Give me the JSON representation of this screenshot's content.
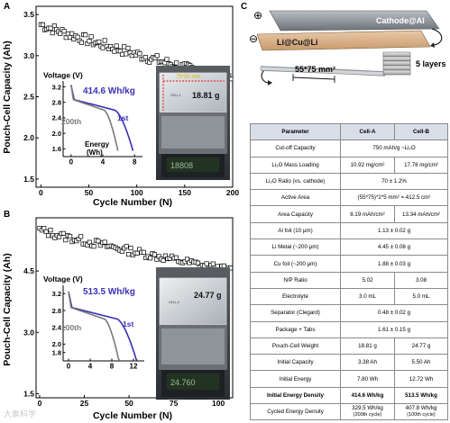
{
  "panels": {
    "a": "A",
    "b": "B",
    "c": "C"
  },
  "chart_data": [
    {
      "type": "scatter",
      "panel": "A",
      "ylabel": "Pouch-Cell Capacity (Ah)",
      "xlabel": "Cycle Number (N)",
      "xlim": [
        -5,
        200
      ],
      "ylim": [
        1.4,
        3.6
      ],
      "xticks": [
        "0",
        "50",
        "100",
        "150",
        "200"
      ],
      "yticks": [
        "1.5",
        "2.0",
        "2.5",
        "3.0",
        "3.5"
      ],
      "series": [
        {
          "start_capacity": 3.38,
          "end_capacity": 2.7,
          "cycles": 200
        }
      ],
      "inset": {
        "ylabel": "Voltage (V)",
        "xlabel": "Energy\n(Wh)",
        "xlim": [
          -1,
          9
        ],
        "ylim": [
          1.4,
          3.35
        ],
        "xticks": [
          "0",
          "4",
          "8"
        ],
        "yticks": [
          "1.6",
          "2.0",
          "2.4",
          "2.8",
          "3.2"
        ],
        "curves": [
          {
            "name": "1st",
            "color": "#3a2fb5",
            "energy_end": 7.8
          },
          {
            "name": "200th",
            "color": "#7a7a7a",
            "energy_end": 5.9
          }
        ],
        "energy_density": "414.6 Wh/kg"
      },
      "photo": {
        "dim_label": "75*55 mm",
        "weight": "18.81 g",
        "cell_tag": "CELL-1",
        "scale_readout": "18808"
      }
    },
    {
      "type": "scatter",
      "panel": "B",
      "ylabel": "Pouch-Cell Capacity (Ah)",
      "xlabel": "Cycle Number (N)",
      "xlim": [
        -2,
        108
      ],
      "ylim": [
        1.4,
        5.8
      ],
      "xticks": [
        "0",
        "25",
        "50",
        "75",
        "100"
      ],
      "yticks": [
        "1.5",
        "3.0",
        "4.5"
      ],
      "series": [
        {
          "start_capacity": 5.5,
          "end_capacity": 4.5,
          "cycles": 108
        }
      ],
      "inset": {
        "ylabel": "Voltage (V)",
        "xlabel": "",
        "xlim": [
          -1,
          14
        ],
        "ylim": [
          1.6,
          3.4
        ],
        "xticks": [
          "0",
          "4",
          "8",
          "12"
        ],
        "yticks": [
          "1.8",
          "2.0",
          "2.4",
          "2.8",
          "3.2",
          "3.6"
        ],
        "curves": [
          {
            "name": "1st",
            "color": "#3a2fb5",
            "energy_end": 12.7
          },
          {
            "name": "100th",
            "color": "#7a7a7a",
            "energy_end": 9.4
          }
        ],
        "energy_density": "513.5 Wh/kg"
      },
      "photo": {
        "weight": "24.77 g",
        "cell_tag": "CELL-2",
        "scale_readout": "24.760"
      }
    }
  ],
  "schematic": {
    "cathode": "Cathode@Al",
    "anode": "Li@Cu@Li",
    "plus": "⊕",
    "minus": "⊖",
    "area": "55*75 mm²",
    "layers": "5 layers"
  },
  "table": {
    "headers": [
      "Parameter",
      "Cell-A",
      "Cell-B"
    ],
    "rows": [
      {
        "p": "Cut-off Capacity",
        "span": "750 mAh/g ~Li₂O"
      },
      {
        "p": "Li₂O Mass Loading",
        "a": "10.92 mg/cm²",
        "b": "17.78 mg/cm²"
      },
      {
        "p": "Li₂O Ratio (vs. cathode)",
        "span": "70 ± 1.2%"
      },
      {
        "p": "Active Area",
        "span": "(55*75)*2*5 mm² = 412.5 cm²"
      },
      {
        "p": "Area Capacity",
        "a": "8.19 mAh/cm²",
        "b": "13.34 mAh/cm²"
      },
      {
        "p": "Al foil (10 μm)",
        "span": "1.13 ± 0.02 g"
      },
      {
        "p": "Li Metal (~200 μm)",
        "span": "4.45 ± 0.08 g"
      },
      {
        "p": "Cu foil (~200 μm)",
        "span": "1.88 ± 0.03 g"
      },
      {
        "p": "N/P Ratio",
        "a": "5.02",
        "b": "3.08"
      },
      {
        "p": "Electrolyte",
        "a": "3.0 mL",
        "b": "5.0 mL"
      },
      {
        "p": "Separator (Clegard)",
        "span": "0.48 ± 0.02 g"
      },
      {
        "p": "Package + Tabs",
        "span": "1.61 ± 0.15 g"
      },
      {
        "p": "Pouch-Cell Weight",
        "a": "18.81 g",
        "b": "24.77 g"
      },
      {
        "p": "Initial Capacity",
        "a": "3.38 Ah",
        "b": "5.50 Ah"
      },
      {
        "p": "Initial Energy",
        "a": "7.80 Wh",
        "b": "12.72 Wh"
      },
      {
        "p": "Initial Energy Density",
        "a": "414.6 Wh/kg",
        "b": "513.5 Wh/kg",
        "bold": true
      },
      {
        "p": "Cycled Energy Density",
        "a": "329.5 Wh/kg\n(200th cycle)",
        "b": "407.8 Wh/kg\n(100th cycle)"
      }
    ]
  },
  "watermark": "大象科学"
}
